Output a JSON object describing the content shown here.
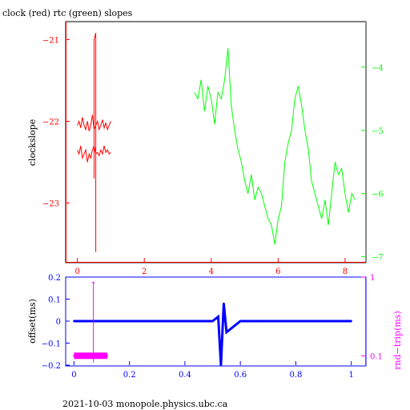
{
  "title": "clock (red) rtc (green) slopes",
  "footer": "2021-10-03  monopole.physics.ubc.ca",
  "colors": {
    "red": "#ff0000",
    "green": "#00ff00",
    "blue": "#0000ff",
    "magenta": "#ff00ff",
    "frame": "#000000"
  },
  "chart_data": [
    {
      "type": "line",
      "title": "clock (red) rtc (green) slopes",
      "ylabel": "clockslope",
      "xlim": [
        -0.35,
        8.6
      ],
      "ylim": [
        -23.72,
        -20.78
      ],
      "y2lim": [
        -7.08,
        -3.28
      ],
      "xticks": [
        0,
        2,
        4,
        6,
        8
      ],
      "yticks_left": [
        -21,
        -22,
        -23
      ],
      "yticks_right": [
        -4,
        -5,
        -6,
        -7
      ],
      "series": [
        {
          "axis": "left",
          "color": "#ff0000",
          "x": [
            0.0,
            0.05,
            0.1,
            0.15,
            0.2,
            0.25,
            0.3,
            0.35,
            0.4,
            0.45,
            0.5,
            0.55,
            0.6,
            0.65,
            0.7,
            0.75,
            0.8,
            0.85,
            0.9,
            0.95,
            1.0
          ],
          "y": [
            -22.05,
            -22.0,
            -22.08,
            -21.95,
            -22.05,
            -22.1,
            -22.0,
            -22.12,
            -22.05,
            -21.92,
            -22.1,
            -22.05,
            -22.0,
            -22.1,
            -22.05,
            -21.98,
            -22.08,
            -22.02,
            -22.1,
            -22.05,
            -22.0
          ]
        },
        {
          "axis": "left",
          "color": "#ff0000",
          "x": [
            0.0,
            0.05,
            0.1,
            0.15,
            0.2,
            0.25,
            0.3,
            0.35,
            0.4,
            0.45,
            0.5,
            0.55,
            0.6,
            0.65,
            0.7,
            0.75,
            0.8,
            0.85,
            0.9,
            0.95,
            1.0
          ],
          "y": [
            -22.35,
            -22.4,
            -22.3,
            -22.45,
            -22.4,
            -22.35,
            -22.5,
            -22.4,
            -22.45,
            -22.35,
            -22.3,
            -22.4,
            -22.38,
            -22.42,
            -22.35,
            -22.4,
            -22.3,
            -22.38,
            -22.35,
            -22.4,
            -22.38
          ]
        },
        {
          "axis": "left",
          "color": "#ff0000",
          "x": [
            0.5,
            0.5,
            0.5,
            0.55,
            0.55,
            0.55
          ],
          "y": [
            -21.9,
            -22.7,
            -21.0,
            -20.92,
            -23.6,
            -22.2
          ]
        },
        {
          "axis": "right",
          "color": "#00ff00",
          "x": [
            3.5,
            3.6,
            3.7,
            3.8,
            3.9,
            4.0,
            4.1,
            4.2,
            4.3,
            4.4,
            4.5,
            4.6,
            4.7,
            4.8,
            4.9,
            5.0,
            5.1,
            5.2,
            5.3,
            5.4,
            5.5,
            5.6,
            5.7,
            5.8,
            5.9,
            6.0,
            6.1,
            6.2,
            6.3,
            6.4,
            6.5,
            6.6,
            6.7,
            6.8,
            6.9,
            7.0,
            7.1,
            7.2,
            7.3,
            7.4,
            7.5,
            7.6,
            7.7,
            7.8,
            7.9,
            8.0,
            8.1,
            8.2,
            8.3
          ],
          "y": [
            -4.4,
            -4.5,
            -4.2,
            -4.7,
            -4.3,
            -4.5,
            -4.9,
            -4.4,
            -4.5,
            -4.2,
            -3.7,
            -4.6,
            -5.0,
            -5.3,
            -5.5,
            -5.8,
            -6.0,
            -5.7,
            -6.1,
            -5.9,
            -6.0,
            -6.2,
            -6.4,
            -6.5,
            -6.8,
            -6.4,
            -6.2,
            -5.5,
            -5.2,
            -5.0,
            -4.5,
            -4.3,
            -4.6,
            -5.0,
            -5.3,
            -5.8,
            -6.0,
            -6.2,
            -6.4,
            -6.1,
            -6.5,
            -6.0,
            -5.5,
            -5.7,
            -5.6,
            -6.0,
            -6.3,
            -6.0,
            -6.1
          ]
        }
      ]
    },
    {
      "type": "scatter",
      "ylabel": "offset(ms)",
      "y2label": "rnd−trip(ms)",
      "xlim": [
        -0.03,
        1.05
      ],
      "ylim": [
        -0.2,
        0.2
      ],
      "y2log": true,
      "y2lim": [
        0.076,
        1.0
      ],
      "xticks": [
        "0",
        "0.2",
        "0.4",
        "0.6",
        "0.8",
        "1"
      ],
      "yticks_left": [
        "0.2",
        "0.1",
        "0",
        "−0.1",
        "−0.2"
      ],
      "yticks_right": [
        "1",
        "0.1"
      ],
      "series": [
        {
          "axis": "left",
          "color": "#0000ff",
          "x": [
            0.0,
            0.1,
            0.2,
            0.3,
            0.4,
            0.5,
            0.52,
            0.53,
            0.54,
            0.55,
            0.6,
            0.7,
            0.8,
            0.9,
            1.0
          ],
          "y": [
            0.0,
            0.0,
            0.0,
            0.0,
            0.0,
            0.0,
            0.02,
            -0.2,
            0.08,
            -0.05,
            0.0,
            0.0,
            0.0,
            0.0,
            0.0
          ]
        },
        {
          "axis": "right",
          "color": "#ff00ff",
          "x": [
            0.0,
            0.06,
            0.07,
            0.12
          ],
          "y": [
            0.1,
            0.1,
            0.85,
            0.1
          ]
        }
      ]
    }
  ]
}
